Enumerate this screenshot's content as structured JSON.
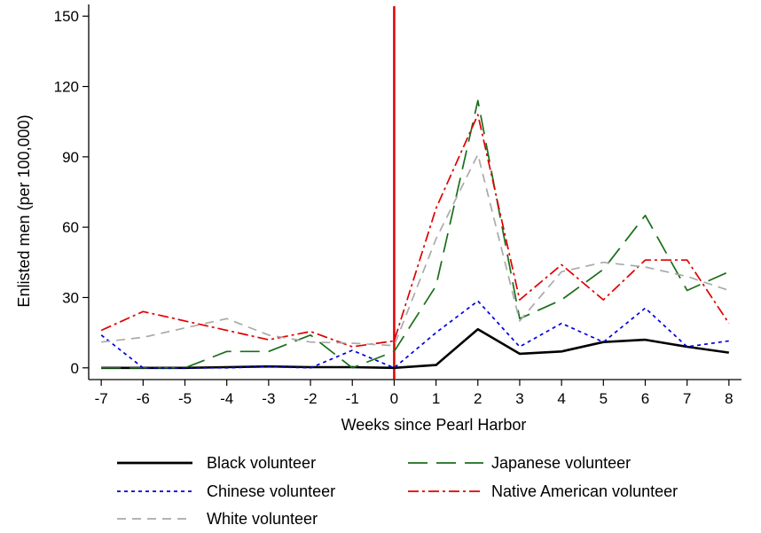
{
  "chart_data": {
    "type": "line",
    "title": "",
    "xlabel": "Weeks since Pearl Harbor",
    "ylabel": "Enlisted men (per 100,000)",
    "x": [
      -7,
      -6,
      -5,
      -4,
      -3,
      -2,
      -1,
      0,
      1,
      2,
      3,
      4,
      5,
      6,
      7,
      8
    ],
    "xlim": [
      -7.3,
      8.3
    ],
    "ylim": [
      -5,
      155
    ],
    "yticks": [
      0,
      30,
      60,
      90,
      120,
      150
    ],
    "grid": false,
    "legend_position": "bottom",
    "reference_line": {
      "x": 0,
      "color": "#e00000"
    },
    "series": [
      {
        "name": "Black volunteer",
        "color": "#000000",
        "dash": "solid",
        "values": [
          0,
          0,
          0,
          0.3,
          0.6,
          0.3,
          0.3,
          0,
          1.2,
          16.5,
          6,
          7,
          11,
          12,
          9,
          6.5
        ]
      },
      {
        "name": "Japanese volunteer",
        "color": "#1a6e1a",
        "dash": "longdash",
        "values": [
          0,
          0,
          0,
          7,
          7,
          14,
          0,
          7,
          35,
          114,
          21,
          29,
          42,
          65,
          33,
          41
        ]
      },
      {
        "name": "Chinese volunteer",
        "color": "#0000dd",
        "dash": "shortdash",
        "values": [
          14,
          0,
          0,
          0,
          0.5,
          0,
          7.5,
          0,
          15,
          28.5,
          9,
          19,
          11,
          25.5,
          9,
          11.5
        ]
      },
      {
        "name": "Native American volunteer",
        "color": "#e00000",
        "dash": "dashdot",
        "values": [
          16,
          24,
          20,
          16,
          12,
          15.5,
          9,
          11.5,
          68,
          108,
          29,
          44,
          29,
          46,
          46,
          19
        ]
      },
      {
        "name": "White volunteer",
        "color": "#aaaaaa",
        "dash": "dash",
        "values": [
          11,
          13,
          17,
          21,
          14,
          11,
          10.5,
          9.5,
          55,
          91,
          20,
          41,
          45,
          43,
          39,
          33
        ]
      }
    ]
  }
}
